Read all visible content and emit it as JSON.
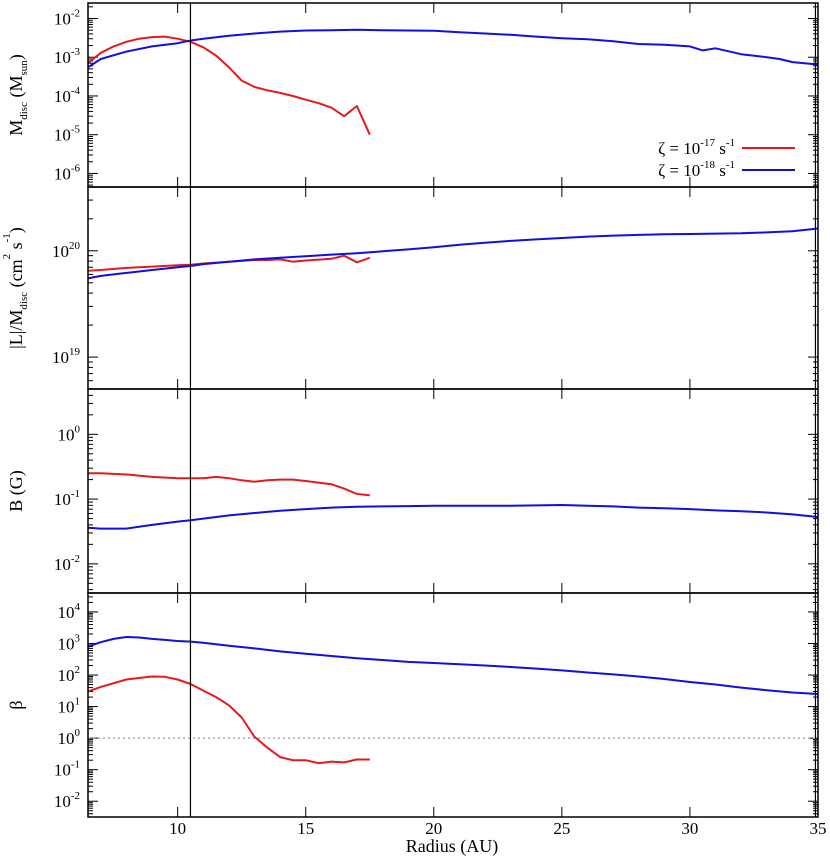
{
  "chart_data": {
    "type": "line",
    "x_range": [
      6.5,
      35
    ],
    "xlabel": "Radius (AU)",
    "x_ticks": [
      10,
      15,
      20,
      25,
      30,
      35
    ],
    "vertical_markers": [
      10.5,
      34.9
    ],
    "legend": {
      "placement": "inside-right of top panel",
      "entries": [
        {
          "label_base": "ζ = 10",
          "label_exp": "-17",
          "label_unit": " s",
          "label_unit_exp": "-1",
          "color": "#e41a1c"
        },
        {
          "label_base": "ζ = 10",
          "label_exp": "-18",
          "label_unit": " s",
          "label_unit_exp": "-1",
          "color": "#1010e0"
        }
      ]
    },
    "panels": [
      {
        "id": "mdisc",
        "ylabel_main": "M",
        "ylabel_sub": "disc",
        "ylabel_rest": " (M",
        "ylabel_sub2": "sun",
        "ylabel_end": ")",
        "scale": "log",
        "ylim_exp": [
          -6.35,
          -1.6
        ],
        "ticks": [
          {
            "base": "10",
            "exp": "-6",
            "e": -6
          },
          {
            "base": "10",
            "exp": "-5",
            "e": -5
          },
          {
            "base": "10",
            "exp": "-4",
            "e": -4
          },
          {
            "base": "10",
            "exp": "-3",
            "e": -3
          },
          {
            "base": "10",
            "exp": "-2",
            "e": -2
          }
        ],
        "series": [
          {
            "color": "#e41a1c",
            "x": [
              6.5,
              7,
              7.5,
              8,
              8.5,
              9,
              9.5,
              10,
              10.5,
              11,
              11.5,
              12,
              12.5,
              13,
              13.5,
              14,
              14.5,
              15,
              15.5,
              16,
              16.5,
              17,
              17.5
            ],
            "y": [
              0.0007,
              0.0013,
              0.0019,
              0.0025,
              0.003,
              0.0033,
              0.0034,
              0.003,
              0.0025,
              0.0018,
              0.0011,
              0.00055,
              0.00025,
              0.00017,
              0.00014,
              0.00012,
              0.0001,
              8e-05,
              6.5e-05,
              5e-05,
              3e-05,
              5.5e-05,
              1e-05
            ]
          },
          {
            "color": "#1010e0",
            "x": [
              6.5,
              7,
              8,
              9,
              10,
              10.5,
              11,
              12,
              13,
              14,
              15,
              16,
              17,
              18,
              19,
              20,
              21,
              22,
              23,
              24,
              25,
              26,
              27,
              28,
              29,
              30,
              30.5,
              31,
              32,
              33,
              33.5,
              34,
              35
            ],
            "y": [
              0.00055,
              0.0009,
              0.0014,
              0.0019,
              0.0023,
              0.0027,
              0.003,
              0.0036,
              0.0041,
              0.0046,
              0.0049,
              0.005,
              0.0051,
              0.005,
              0.0049,
              0.0048,
              0.0044,
              0.0041,
              0.0038,
              0.0034,
              0.0031,
              0.0029,
              0.0026,
              0.0022,
              0.0021,
              0.0019,
              0.0015,
              0.0017,
              0.0012,
              0.001,
              0.0009,
              0.00075,
              0.00065
            ]
          }
        ]
      },
      {
        "id": "L",
        "ylabel_main": "|L|/M",
        "ylabel_sub": "disc",
        "ylabel_rest": " (cm",
        "ylabel_sup": "2",
        "ylabel_rest2": " s",
        "ylabel_sup2": "-1",
        "ylabel_end": ")",
        "scale": "log",
        "ylim_exp": [
          18.7,
          20.6
        ],
        "ticks": [
          {
            "base": "10",
            "exp": "19",
            "e": 19
          },
          {
            "base": "10",
            "exp": "20",
            "e": 20
          }
        ],
        "series": [
          {
            "color": "#e41a1c",
            "x": [
              6.5,
              7,
              8,
              9,
              10,
              10.5,
              11,
              12,
              13,
              13.5,
              14,
              14.5,
              15,
              16,
              16.5,
              17,
              17.5
            ],
            "y": [
              6.5e+19,
              6.6e+19,
              6.9e+19,
              7.1e+19,
              7.3e+19,
              7.4e+19,
              7.6e+19,
              7.9e+19,
              8.2e+19,
              8.2e+19,
              8.3e+19,
              7.9e+19,
              8.1e+19,
              8.4e+19,
              9e+19,
              7.8e+19,
              8.6e+19
            ]
          },
          {
            "color": "#1010e0",
            "x": [
              6.5,
              7,
              8,
              9,
              10,
              10.5,
              11,
              12,
              13,
              14,
              15,
              16,
              17,
              18,
              19,
              20,
              21,
              22,
              23,
              24,
              25,
              26,
              27,
              28,
              29,
              30,
              31,
              32,
              33,
              34,
              35
            ],
            "y": [
              5.5e+19,
              5.8e+19,
              6.2e+19,
              6.6e+19,
              7e+19,
              7.2e+19,
              7.5e+19,
              7.9e+19,
              8.3e+19,
              8.6e+19,
              8.9e+19,
              9.2e+19,
              9.5e+19,
              9.9e+19,
              1.03e+20,
              1.08e+20,
              1.14e+20,
              1.19e+20,
              1.24e+20,
              1.28e+20,
              1.32e+20,
              1.36e+20,
              1.39e+20,
              1.41e+20,
              1.43e+20,
              1.44e+20,
              1.45e+20,
              1.46e+20,
              1.49e+20,
              1.53e+20,
              1.62e+20
            ]
          }
        ]
      },
      {
        "id": "B",
        "ylabel_main": "B (G)",
        "scale": "log",
        "ylim_exp": [
          -2.45,
          0.7
        ],
        "ticks": [
          {
            "base": "10",
            "exp": "-2",
            "e": -2
          },
          {
            "base": "10",
            "exp": "-1",
            "e": -1
          },
          {
            "base": "10",
            "exp": "0",
            "e": 0
          }
        ],
        "series": [
          {
            "color": "#e41a1c",
            "x": [
              6.5,
              7,
              8,
              9,
              10,
              10.5,
              11,
              11.5,
              12,
              12.5,
              13,
              13.5,
              14,
              14.5,
              15,
              16,
              16.5,
              17,
              17.5
            ],
            "y": [
              0.25,
              0.25,
              0.24,
              0.22,
              0.21,
              0.21,
              0.21,
              0.22,
              0.21,
              0.195,
              0.185,
              0.195,
              0.2,
              0.2,
              0.19,
              0.17,
              0.145,
              0.12,
              0.115
            ]
          },
          {
            "color": "#1010e0",
            "x": [
              6.5,
              7,
              7.5,
              8,
              9,
              10,
              10.5,
              11,
              12,
              13,
              14,
              15,
              16,
              17,
              18,
              19,
              20,
              21,
              22,
              23,
              24,
              25,
              26,
              27,
              28,
              29,
              30,
              31,
              32,
              33,
              34,
              35
            ],
            "y": [
              0.036,
              0.035,
              0.035,
              0.035,
              0.04,
              0.045,
              0.047,
              0.05,
              0.056,
              0.061,
              0.066,
              0.07,
              0.074,
              0.076,
              0.077,
              0.078,
              0.079,
              0.079,
              0.079,
              0.079,
              0.08,
              0.081,
              0.079,
              0.077,
              0.074,
              0.072,
              0.07,
              0.067,
              0.065,
              0.062,
              0.058,
              0.053
            ]
          }
        ]
      },
      {
        "id": "beta",
        "ylabel_main": "β",
        "scale": "log",
        "ylim_exp": [
          -2.5,
          4.6
        ],
        "ticks": [
          {
            "base": "10",
            "exp": "-2",
            "e": -2
          },
          {
            "base": "10",
            "exp": "-1",
            "e": -1
          },
          {
            "base": "10",
            "exp": "0",
            "e": 0
          },
          {
            "base": "10",
            "exp": "1",
            "e": 1
          },
          {
            "base": "10",
            "exp": "2",
            "e": 2
          },
          {
            "base": "10",
            "exp": "3",
            "e": 3
          },
          {
            "base": "10",
            "exp": "4",
            "e": 4
          }
        ],
        "reference_line": {
          "y": 1,
          "style": "dotted",
          "color": "#999999"
        },
        "series": [
          {
            "color": "#e41a1c",
            "x": [
              6.5,
              7,
              8,
              9,
              9.5,
              10,
              10.5,
              11,
              11.5,
              12,
              12.5,
              13,
              13.5,
              14,
              14.5,
              15,
              15.5,
              16,
              16.5,
              17,
              17.5
            ],
            "y": [
              30,
              42,
              72,
              90,
              88,
              72,
              52,
              32,
              20,
              11,
              4.5,
              1.1,
              0.5,
              0.25,
              0.2,
              0.2,
              0.16,
              0.18,
              0.17,
              0.21,
              0.21
            ]
          },
          {
            "color": "#1010e0",
            "x": [
              6.5,
              7,
              7.5,
              8,
              8.5,
              9,
              9.5,
              10,
              10.5,
              11,
              12,
              13,
              14,
              15,
              16,
              17,
              18,
              19,
              20,
              21,
              22,
              23,
              24,
              25,
              26,
              27,
              28,
              29,
              30,
              31,
              32,
              33,
              34,
              35
            ],
            "y": [
              800,
              1100,
              1400,
              1600,
              1550,
              1400,
              1300,
              1200,
              1150,
              1050,
              850,
              700,
              560,
              470,
              400,
              340,
              300,
              260,
              240,
              220,
              200,
              180,
              160,
              140,
              120,
              105,
              90,
              75,
              60,
              50,
              40,
              33,
              28,
              25
            ]
          }
        ]
      }
    ]
  }
}
